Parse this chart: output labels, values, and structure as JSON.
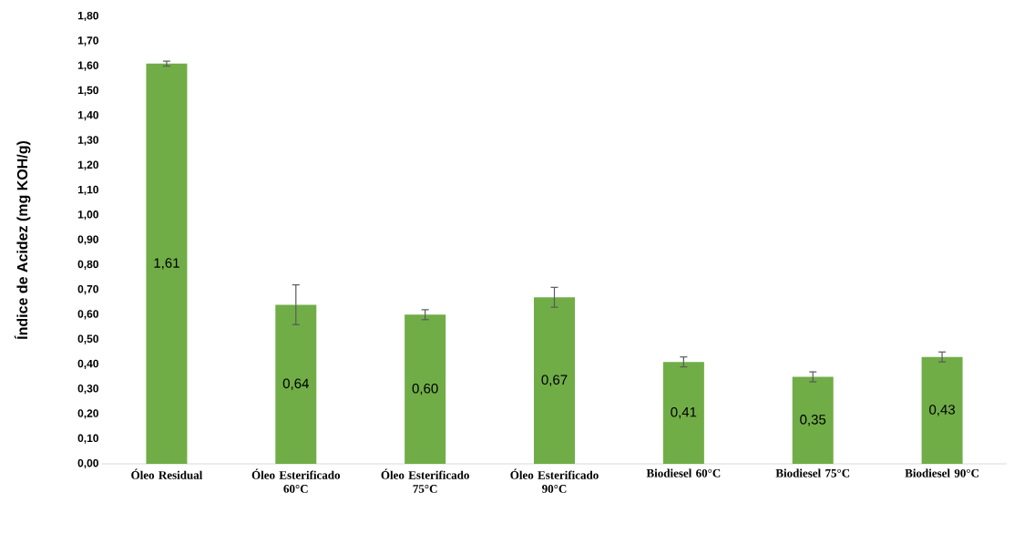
{
  "chart_data": {
    "type": "bar",
    "ylabel": "Índice de Acidez (mg KOH/g)",
    "categories": [
      "Óleo Residual",
      "Óleo Esterificado 60°C",
      "Óleo Esterificado 75°C",
      "Óleo Esterificado 90°C",
      "Biodiesel 60°C",
      "Biodiesel 75°C",
      "Biodiesel 90°C"
    ],
    "values": [
      1.61,
      0.64,
      0.6,
      0.67,
      0.41,
      0.35,
      0.43
    ],
    "errors": [
      0.01,
      0.08,
      0.02,
      0.04,
      0.02,
      0.02,
      0.02
    ],
    "value_labels": [
      "1,61",
      "0,64",
      "0,60",
      "0,67",
      "0,41",
      "0,35",
      "0,43"
    ],
    "color": "#70ad47",
    "ylim": [
      0,
      1.8
    ],
    "yticks": [
      {
        "value": 0,
        "label": "0,00"
      },
      {
        "value": 0.1,
        "label": "0,10"
      },
      {
        "value": 0.2,
        "label": "0,20"
      },
      {
        "value": 0.3,
        "label": "0,30"
      },
      {
        "value": 0.4,
        "label": "0,40"
      },
      {
        "value": 0.5,
        "label": "0,50"
      },
      {
        "value": 0.6,
        "label": "0,60"
      },
      {
        "value": 0.7,
        "label": "0,70"
      },
      {
        "value": 0.8,
        "label": "0,80"
      },
      {
        "value": 0.9,
        "label": "0,90"
      },
      {
        "value": 1.0,
        "label": "1,00"
      },
      {
        "value": 1.1,
        "label": "1,10"
      },
      {
        "value": 1.2,
        "label": "1,20"
      },
      {
        "value": 1.3,
        "label": "1,30"
      },
      {
        "value": 1.4,
        "label": "1,40"
      },
      {
        "value": 1.5,
        "label": "1,50"
      },
      {
        "value": 1.6,
        "label": "1,60"
      },
      {
        "value": 1.7,
        "label": "1,70"
      },
      {
        "value": 1.8,
        "label": "1,80"
      }
    ]
  }
}
